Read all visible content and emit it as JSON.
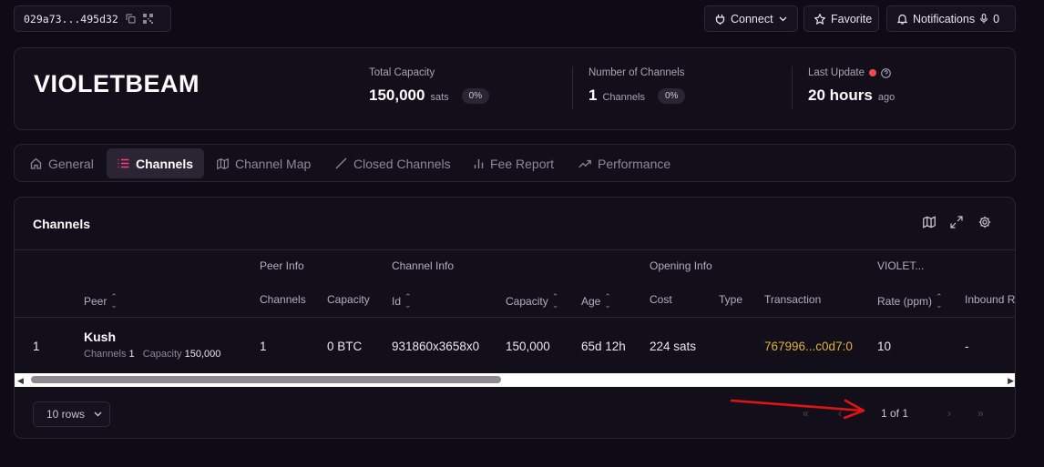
{
  "topbar": {
    "pubkey": "029a73...495d32",
    "connect_label": "Connect",
    "favorite_label": "Favorite",
    "notifications_label": "Notifications",
    "notifications_count": "0"
  },
  "node": {
    "name": "VIOLETBEAM",
    "total_capacity_label": "Total Capacity",
    "total_capacity_value": "150,000",
    "total_capacity_unit": "sats",
    "total_capacity_change": "0%",
    "channels_label": "Number of Channels",
    "channels_value": "1",
    "channels_unit": "Channels",
    "channels_change": "0%",
    "last_update_label": "Last Update",
    "last_update_value": "20 hours",
    "last_update_unit": "ago",
    "status_color": "#ef4b4b"
  },
  "tabs": [
    {
      "label": "General",
      "icon": "home-icon"
    },
    {
      "label": "Channels",
      "icon": "list-icon",
      "active": true
    },
    {
      "label": "Channel Map",
      "icon": "map-icon"
    },
    {
      "label": "Closed Channels",
      "icon": "slash-icon"
    },
    {
      "label": "Fee Report",
      "icon": "bar-chart-icon"
    },
    {
      "label": "Performance",
      "icon": "trending-up-icon"
    }
  ],
  "channels": {
    "title": "Channels",
    "groups": {
      "peer_info": "Peer Info",
      "channel_info": "Channel Info",
      "opening_info": "Opening Info",
      "node": "VIOLET..."
    },
    "columns": {
      "peer": "Peer",
      "channels": "Channels",
      "capacity": "Capacity",
      "id": "Id",
      "ch_capacity": "Capacity",
      "age": "Age",
      "cost": "Cost",
      "type": "Type",
      "transaction": "Transaction",
      "rate": "Rate (ppm)",
      "inbound": "Inbound R"
    },
    "row": {
      "index": "1",
      "peer_name": "Kush",
      "peer_channels_label": "Channels",
      "peer_channels": "1",
      "peer_capacity_label": "Capacity",
      "peer_capacity": "150,000",
      "channels": "1",
      "capacity": "0 BTC",
      "id": "931860x3658x0",
      "ch_capacity": "150,000",
      "age": "65d 12h",
      "cost": "224 sats",
      "type": "",
      "transaction": "767996...c0d7:0",
      "rate": "10",
      "inbound": "-"
    },
    "rows_select": "10 rows",
    "page_info": "1 of 1"
  },
  "colors": {
    "accent": "#ff3d7f",
    "transaction_link": "#e0b13a",
    "annotation_arrow": "#e01414"
  }
}
